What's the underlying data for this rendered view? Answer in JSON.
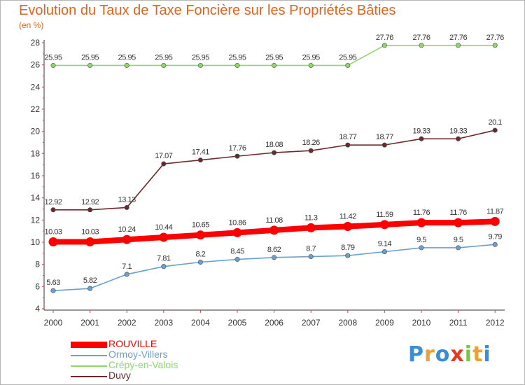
{
  "title": "Evolution du Taux de Taxe Foncière sur les Propriétés Bâties",
  "unit_label": "(en %)",
  "logo": {
    "text": "Proxiti",
    "letters": [
      "P",
      "r",
      "o",
      "x",
      "i",
      "t",
      "i"
    ],
    "colors": [
      "#3a8ed8",
      "#e8a13c",
      "#3a8ed8",
      "#e23b1f",
      "#7cc34a",
      "#e8a13c",
      "#3a8ed8"
    ]
  },
  "chart_data": {
    "type": "line",
    "title": "Evolution du Taux de Taxe Foncière sur les Propriétés Bâties",
    "ylabel": "(en %)",
    "xlabel": "",
    "ylim": [
      4,
      28
    ],
    "yticks": [
      4,
      6,
      8,
      10,
      12,
      14,
      16,
      18,
      20,
      22,
      24,
      26,
      28
    ],
    "categories": [
      "2000",
      "2001",
      "2002",
      "2003",
      "2004",
      "2005",
      "2006",
      "2007",
      "2008",
      "2009",
      "2010",
      "2011",
      "2012"
    ],
    "grid": false,
    "legend_position": "bottom-left",
    "series": [
      {
        "name": "ROUVILLE",
        "color": "#ff0000",
        "emphasis": true,
        "values": [
          10.03,
          10.03,
          10.24,
          10.44,
          10.65,
          10.86,
          11.08,
          11.3,
          11.42,
          11.59,
          11.76,
          11.76,
          11.87
        ],
        "labels": [
          "10.03",
          "10.03",
          "10.24",
          "10.44",
          "10.65",
          "10.86",
          "11.08",
          "11.3",
          "11.42",
          "11.59",
          "11.76",
          "11.76",
          "11.87"
        ]
      },
      {
        "name": "Ormoy-Villers",
        "color": "#6a9fcf",
        "emphasis": false,
        "values": [
          5.63,
          5.82,
          7.1,
          7.81,
          8.2,
          8.45,
          8.62,
          8.7,
          8.79,
          9.14,
          9.5,
          9.5,
          9.79
        ],
        "labels": [
          "5.63",
          "5.82",
          "7.1",
          "7.81",
          "8.2",
          "8.45",
          "8.62",
          "8.7",
          "8.79",
          "9.14",
          "9.5",
          "9.5",
          "9.79"
        ]
      },
      {
        "name": "Crépy-en-Valois",
        "color": "#8ed86a",
        "emphasis": false,
        "values": [
          25.95,
          25.95,
          25.95,
          25.95,
          25.95,
          25.95,
          25.95,
          25.95,
          25.95,
          27.76,
          27.76,
          27.76,
          27.76
        ],
        "labels": [
          "25.95",
          "25.95",
          "25.95",
          "25.95",
          "25.95",
          "25.95",
          "25.95",
          "25.95",
          "25.95",
          "27.76",
          "27.76",
          "27.76",
          "27.76"
        ]
      },
      {
        "name": "Duvy",
        "color": "#6b2a2a",
        "emphasis": false,
        "values": [
          12.92,
          12.92,
          13.13,
          17.07,
          17.41,
          17.76,
          18.08,
          18.26,
          18.77,
          18.77,
          19.33,
          19.33,
          20.1
        ],
        "labels": [
          "12.92",
          "12.92",
          "13.13",
          "17.07",
          "17.41",
          "17.76",
          "18.08",
          "18.26",
          "18.77",
          "18.77",
          "19.33",
          "19.33",
          "20.1"
        ]
      }
    ]
  }
}
